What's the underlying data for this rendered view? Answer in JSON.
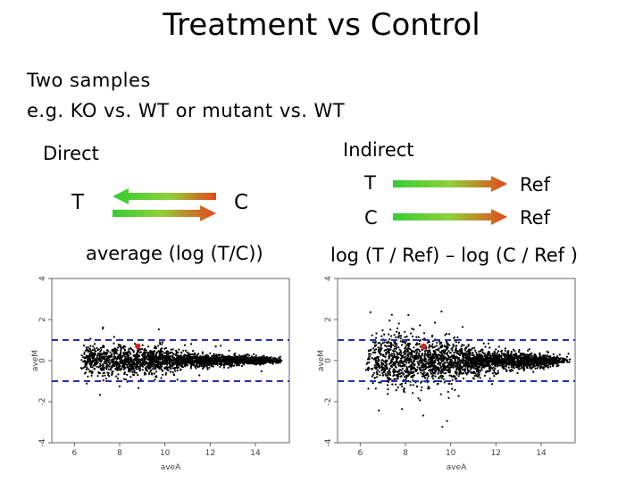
{
  "slide": {
    "title": "Treatment vs Control",
    "subtitle_line1": "Two samples",
    "subtitle_line2": "e.g.  KO vs. WT or mutant vs. WT"
  },
  "direct": {
    "heading": "Direct",
    "left_label": "T",
    "right_label": "C",
    "formula": "average (log (T/C))"
  },
  "indirect": {
    "heading": "Indirect",
    "row1_left": "T",
    "row1_right": "Ref",
    "row2_left": "C",
    "row2_right": "Ref",
    "formula": "log (T / Ref) – log (C / Ref )"
  },
  "chart_data": [
    {
      "type": "scatter",
      "title": "",
      "xlabel": "aveA",
      "ylabel": "aveM",
      "xlim": [
        5,
        15.5
      ],
      "ylim": [
        -4,
        4
      ],
      "x_ticks": [
        "6",
        "8",
        "10",
        "12",
        "14"
      ],
      "y_ticks": [
        "4",
        "2",
        "0",
        "-2",
        "-4"
      ],
      "reference_lines_y": [
        1,
        -1
      ],
      "highlight_point": {
        "x": 8.8,
        "y": 0.7,
        "color": "#e02020"
      },
      "spread": "narrow"
    },
    {
      "type": "scatter",
      "title": "",
      "xlabel": "aveA",
      "ylabel": "aveM",
      "xlim": [
        5,
        15.5
      ],
      "ylim": [
        -4,
        4
      ],
      "x_ticks": [
        "6",
        "8",
        "10",
        "12",
        "14"
      ],
      "y_ticks": [
        "4",
        "2",
        "0",
        "-2",
        "-4"
      ],
      "reference_lines_y": [
        1,
        -1
      ],
      "highlight_point": {
        "x": 8.8,
        "y": 0.7,
        "color": "#e02020"
      },
      "spread": "wide"
    }
  ],
  "colors": {
    "arrow_green": "#33cc33",
    "arrow_red": "#e8461c",
    "dashed_line": "#2233aa",
    "dots": "#000000"
  }
}
